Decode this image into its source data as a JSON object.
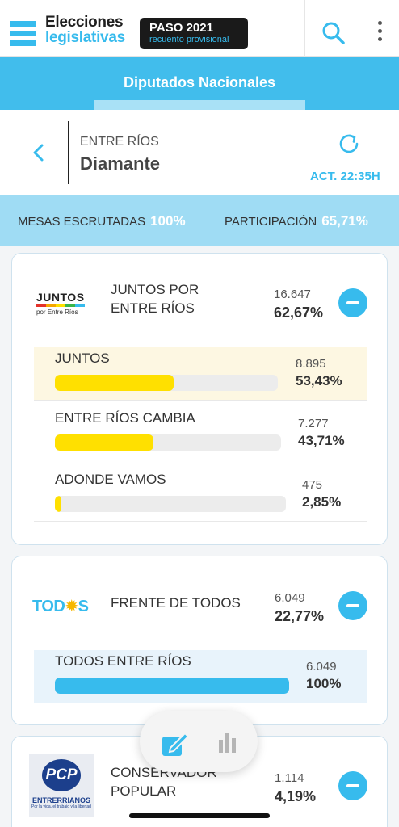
{
  "header": {
    "brand_line1": "Elecciones",
    "brand_line2": "legislativas",
    "badge_title": "PASO 2021",
    "badge_subtitle": "recuento provisional"
  },
  "category": {
    "label": "Diputados Nacionales"
  },
  "location": {
    "province": "ENTRE RÍOS",
    "department": "Diamante",
    "updated": "ACT. 22:35H"
  },
  "stats": {
    "mesas_label": "MESAS ESCRUTADAS",
    "mesas_value": "100%",
    "participacion_label": "PARTICIPACIÓN",
    "participacion_value": "65,71%"
  },
  "parties": [
    {
      "logo_text": "JUNTOS",
      "logo_subtext": "por Entre Ríos",
      "name_line1": "JUNTOS POR",
      "name_line2": "ENTRE RÍOS",
      "votes": "16.647",
      "pct": "62,67%",
      "lists": [
        {
          "name": "JUNTOS",
          "votes": "8.895",
          "pct": "53,43%",
          "share": 0.5343,
          "color": "#ffe000",
          "highlight": true
        },
        {
          "name": "ENTRE RÍOS CAMBIA",
          "votes": "7.277",
          "pct": "43,71%",
          "share": 0.4371,
          "color": "#ffe000",
          "highlight": false
        },
        {
          "name": "ADONDE VAMOS",
          "votes": "475",
          "pct": "2,85%",
          "share": 0.0285,
          "color": "#ffe000",
          "highlight": false
        }
      ]
    },
    {
      "logo_text_a": "TOD",
      "logo_text_b": "S",
      "name_line1": "FRENTE DE TODOS",
      "votes": "6.049",
      "pct": "22,77%",
      "lists": [
        {
          "name": "TODOS ENTRE RÍOS",
          "votes": "6.049",
          "pct": "100%",
          "share": 1.0,
          "color": "#37bbed",
          "highlight": true
        }
      ]
    },
    {
      "logo_text": "PCP",
      "logo_subtext": "ENTRERRIANOS",
      "logo_tagline": "Por la vida, el trabajo y la libertad",
      "name_line1": "CONSERVADOR",
      "name_line2": "POPULAR",
      "votes": "1.114",
      "pct": "4,19%"
    }
  ],
  "icons": {
    "menu": "flag-logo-icon",
    "search": "search-icon",
    "more": "kebab-menu-icon",
    "back": "chevron-left-icon",
    "refresh": "refresh-icon",
    "collapse": "minus-circle-icon",
    "edit": "edit-icon",
    "chart": "bar-chart-icon"
  },
  "colors": {
    "accent": "#37bbed",
    "juntos": "#ffe000",
    "juntos_highlight": "#fdf7e2",
    "todos_highlight": "#e8f3fb"
  }
}
